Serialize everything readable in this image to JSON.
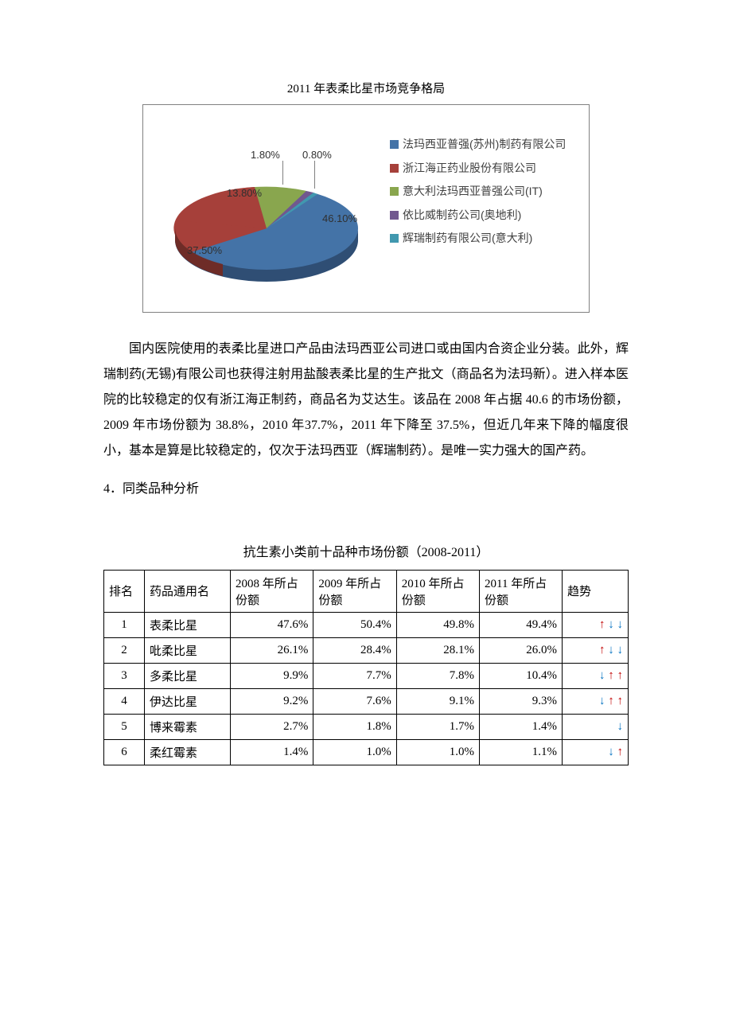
{
  "chart": {
    "title": "2011 年表柔比星市场竞争格局",
    "type": "pie",
    "background_color": "#ffffff",
    "border_color": "#808080",
    "slices": [
      {
        "label": "法玛西亚普强(苏州)制药有限公司",
        "value": 46.1,
        "pct": "46.10%",
        "color": "#4473a7"
      },
      {
        "label": "浙江海正药业股份有限公司",
        "value": 37.5,
        "pct": "37.50%",
        "color": "#a6403a"
      },
      {
        "label": "意大利法玛西亚普强公司(IT)",
        "value": 13.8,
        "pct": "13.80%",
        "color": "#89a64e"
      },
      {
        "label": "依比威制药公司(奥地利)",
        "value": 1.8,
        "pct": "1.80%",
        "color": "#71588f"
      },
      {
        "label": "辉瑞制药有限公司(意大利)",
        "value": 0.8,
        "pct": "0.80%",
        "color": "#4198af"
      }
    ],
    "label_fontsize": 13,
    "legend_fontsize": 14
  },
  "paragraphs": {
    "p1": "国内医院使用的表柔比星进口产品由法玛西亚公司进口或由国内合资企业分装。此外，辉瑞制药(无锡)有限公司也获得注射用盐酸表柔比星的生产批文（商品名为法玛新）。进入样本医院的比较稳定的仅有浙江海正制药，商品名为艾达生。该品在 2008 年占据 40.6 的市场份额，2009 年市场份额为 38.8%，2010 年37.7%，2011 年下降至 37.5%，但近几年来下降的幅度很小，基本是算是比较稳定的，仅次于法玛西亚（辉瑞制药）。是唯一实力强大的国产药。",
    "section_heading": "4．同类品种分析"
  },
  "table": {
    "title": "抗生素小类前十品种市场份额（2008-2011）",
    "columns": [
      "排名",
      "药品通用名",
      "2008 年所占份额",
      "2009 年所占份额",
      "2010 年所占份额",
      "2011 年所占份额",
      "趋势"
    ],
    "rows": [
      {
        "rank": "1",
        "name": "表柔比星",
        "y08": "47.6%",
        "y09": "50.4%",
        "y10": "49.8%",
        "y11": "49.4%",
        "trend": [
          "up",
          "down",
          "down"
        ]
      },
      {
        "rank": "2",
        "name": "吡柔比星",
        "y08": "26.1%",
        "y09": "28.4%",
        "y10": "28.1%",
        "y11": "26.0%",
        "trend": [
          "up",
          "down",
          "down"
        ]
      },
      {
        "rank": "3",
        "name": "多柔比星",
        "y08": "9.9%",
        "y09": "7.7%",
        "y10": "7.8%",
        "y11": "10.4%",
        "trend": [
          "down",
          "up",
          "up"
        ]
      },
      {
        "rank": "4",
        "name": "伊达比星",
        "y08": "9.2%",
        "y09": "7.6%",
        "y10": "9.1%",
        "y11": "9.3%",
        "trend": [
          "down",
          "up",
          "up"
        ]
      },
      {
        "rank": "5",
        "name": "博来霉素",
        "y08": "2.7%",
        "y09": "1.8%",
        "y10": "1.7%",
        "y11": "1.4%",
        "trend": [
          "down"
        ]
      },
      {
        "rank": "6",
        "name": "柔红霉素",
        "y08": "1.4%",
        "y09": "1.0%",
        "y10": "1.0%",
        "y11": "1.1%",
        "trend": [
          "down",
          "up"
        ]
      }
    ],
    "arrow_up_color": "#c00000",
    "arrow_down_color": "#0070c0",
    "border_color": "#000000",
    "fontsize": 15
  }
}
